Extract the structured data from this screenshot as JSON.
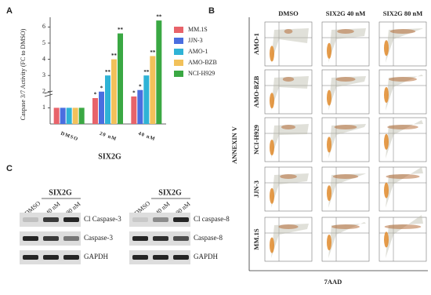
{
  "panel_labels": [
    "A",
    "B",
    "C"
  ],
  "chart_data": {
    "type": "bar",
    "y_label": "Caspase 3/7 Activity (FC to DMSO)",
    "x_label": "SIX2G",
    "categories": [
      "DMSO",
      "20 nM",
      "40 nM"
    ],
    "series": [
      {
        "name": "MM.1S",
        "color": "#e8636a",
        "values": [
          1,
          1.6,
          1.7
        ],
        "stars": [
          null,
          "*",
          "*"
        ]
      },
      {
        "name": "JJN-3",
        "color": "#4a6ee0",
        "values": [
          1,
          2.0,
          2.1
        ],
        "stars": [
          null,
          "*",
          "*"
        ]
      },
      {
        "name": "AMO-1",
        "color": "#2fb3d6",
        "values": [
          1,
          3.0,
          3.0
        ],
        "stars": [
          null,
          "**",
          "**"
        ]
      },
      {
        "name": "AMO-BZB",
        "color": "#f2c15a",
        "values": [
          1,
          4.0,
          4.2
        ],
        "stars": [
          null,
          "**",
          "**"
        ]
      },
      {
        "name": "NCI-H929",
        "color": "#3aa843",
        "values": [
          1,
          5.6,
          6.4
        ],
        "stars": [
          null,
          "**",
          "**"
        ]
      }
    ],
    "ylim": [
      0,
      6.6
    ],
    "yticks": [
      1,
      2,
      3,
      4,
      5,
      6
    ]
  },
  "flow": {
    "y_label": "ANNEXIN V",
    "x_label": "7AAD",
    "columns": [
      "DMSO",
      "SIX2G 40 nM",
      "SIX2G 80 nM"
    ],
    "rows": [
      "AMO-1",
      "AMO-BZB",
      "NCI-H929",
      "JJN-3",
      "MM.1S"
    ]
  },
  "western": [
    {
      "treatment": "SIX2G",
      "lanes": [
        "DMSO",
        "40 nM",
        "80 nM"
      ],
      "proteins": [
        "Cl Caspase-3",
        "Caspase-3",
        "GAPDH"
      ]
    },
    {
      "treatment": "SIX2G",
      "lanes": [
        "DMSO",
        "40 nM",
        "80 nM"
      ],
      "proteins": [
        "Cl caspase-8",
        "Caspase-8",
        "GAPDH"
      ]
    }
  ]
}
